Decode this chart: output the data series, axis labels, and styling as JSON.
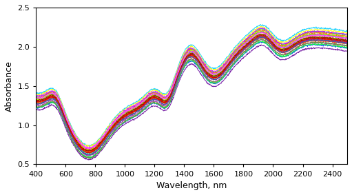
{
  "title": "",
  "xlabel": "Wavelength, nm",
  "ylabel": "Absorbance",
  "xlim": [
    400,
    2500
  ],
  "ylim": [
    0.5,
    2.5
  ],
  "xticks": [
    400,
    600,
    800,
    1000,
    1200,
    1400,
    1600,
    1800,
    2000,
    2200,
    2400
  ],
  "yticks": [
    0.5,
    1.0,
    1.5,
    2.0,
    2.5
  ],
  "n_spectra": 30,
  "background_color": "#ffffff",
  "linewidth": 0.7,
  "colors": [
    "#0000FF",
    "#0033FF",
    "#0066FF",
    "#0099FF",
    "#00CCFF",
    "#00FFFF",
    "#00FF99",
    "#00FF66",
    "#00FF33",
    "#00FF00",
    "#33FF00",
    "#66FF00",
    "#99FF00",
    "#CCFF00",
    "#FFFF00",
    "#FFCC00",
    "#FF9900",
    "#FF6600",
    "#FF3300",
    "#FF0000",
    "#CC0000",
    "#990000",
    "#660099",
    "#9900CC",
    "#CC00FF",
    "#FF00FF",
    "#FF66FF",
    "#993399",
    "#336699",
    "#669933"
  ],
  "wavelength_start": 400,
  "wavelength_end": 2500,
  "wavelength_step": 2
}
